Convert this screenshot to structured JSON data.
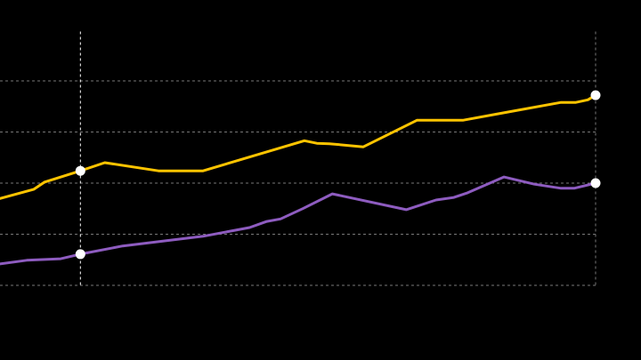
{
  "chart_data": {
    "type": "line",
    "title": "",
    "xlabel": "",
    "ylabel": "",
    "xlim": [
      0,
      100
    ],
    "ylim": [
      0,
      5
    ],
    "yticks": [
      0,
      1,
      2,
      3,
      4
    ],
    "grid": true,
    "highlight_x": 13.5,
    "end_x": 100,
    "background": "#000000",
    "series": [
      {
        "name": "series-yellow",
        "color": "#FFC400",
        "x": [
          0,
          5.7,
          7.5,
          13.5,
          17.6,
          26.6,
          34.1,
          51.1,
          53.2,
          55.3,
          61.0,
          70.0,
          77.7,
          85.2,
          94.2,
          96.7,
          98.7,
          100
        ],
        "y": [
          1.7,
          1.88,
          2.02,
          2.24,
          2.4,
          2.24,
          2.24,
          2.83,
          2.78,
          2.77,
          2.71,
          3.23,
          3.23,
          3.39,
          3.58,
          3.58,
          3.63,
          3.72
        ],
        "markers_at": [
          13.5,
          100
        ]
      },
      {
        "name": "series-purple",
        "color": "#8E5CC0",
        "x": [
          0,
          4.5,
          10.2,
          13.5,
          20.6,
          34.1,
          41.9,
          44.8,
          47.1,
          50.8,
          55.8,
          68.2,
          73.2,
          76.2,
          78.5,
          84.6,
          89.7,
          94.2,
          96.4,
          100
        ],
        "y": [
          0.42,
          0.49,
          0.52,
          0.61,
          0.77,
          0.96,
          1.13,
          1.25,
          1.3,
          1.5,
          1.79,
          1.48,
          1.67,
          1.72,
          1.81,
          2.12,
          1.98,
          1.9,
          1.9,
          2.0
        ],
        "markers_at": [
          13.5,
          100
        ]
      }
    ]
  }
}
